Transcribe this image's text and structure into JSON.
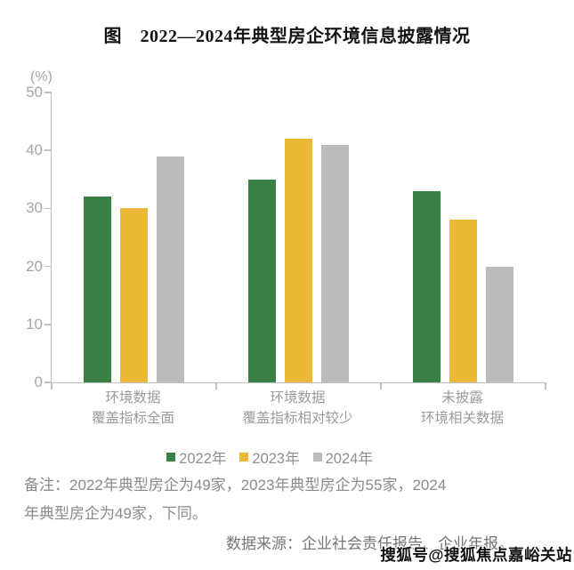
{
  "page": {
    "title": "图　2022—2024年典型房企环境信息披露情况",
    "notes": "备注：2022年典型房企为49家，2023年典型房企为55家，2024\n年典型房企为49家，下同。",
    "source": "数据来源：企业社会责任报告、企业年报。",
    "watermark": "搜狐号@搜狐焦点嘉峪关站"
  },
  "chart_data": {
    "type": "bar",
    "title": "图　2022—2024年典型房企环境信息披露情况",
    "xlabel": "",
    "ylabel": "(%)",
    "ylim": [
      0,
      50
    ],
    "yticks": [
      0,
      10,
      20,
      30,
      40,
      50
    ],
    "grid": false,
    "legend_position": "bottom",
    "categories": [
      "环境数据\n覆盖指标全面",
      "环境数据\n覆盖指标相对较少",
      "未披露\n环境相关数据"
    ],
    "series": [
      {
        "name": "2022年",
        "color": "#388044",
        "values": [
          32,
          35,
          33
        ]
      },
      {
        "name": "2023年",
        "color": "#EAB737",
        "values": [
          30,
          42,
          28
        ]
      },
      {
        "name": "2024年",
        "color": "#BABBBD",
        "values": [
          39,
          41,
          20
        ]
      }
    ],
    "axis_color": "#BFBFBF",
    "tick_label_color": "#A6A6A6"
  }
}
